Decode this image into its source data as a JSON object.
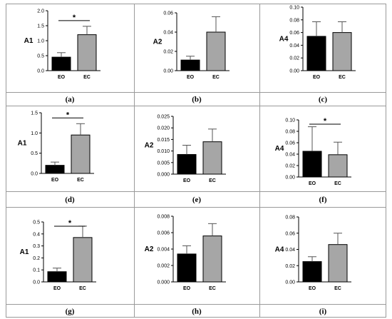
{
  "chart_data": [
    {
      "type": "bar",
      "panel_label": "(a)",
      "ylabel": "A1",
      "categories": [
        "EO",
        "EC"
      ],
      "values": [
        0.45,
        1.2
      ],
      "errors": [
        0.15,
        0.28
      ],
      "ylim": [
        0,
        2.0
      ],
      "yticks": [
        "0.0",
        "0.5",
        "1.0",
        "1.5",
        "2.0"
      ],
      "colors": [
        "#000000",
        "#a6a6a6"
      ],
      "significance": "*"
    },
    {
      "type": "bar",
      "panel_label": "(b)",
      "ylabel": "A2",
      "categories": [
        "EO",
        "EC"
      ],
      "values": [
        0.011,
        0.04
      ],
      "errors": [
        0.004,
        0.016
      ],
      "ylim": [
        0,
        0.06
      ],
      "yticks": [
        "0.00",
        "0.02",
        "0.04",
        "0.06"
      ],
      "colors": [
        "#000000",
        "#a6a6a6"
      ],
      "significance": ""
    },
    {
      "type": "bar",
      "panel_label": "(c)",
      "ylabel": "A4",
      "categories": [
        "EO",
        "EC"
      ],
      "values": [
        0.054,
        0.06
      ],
      "errors": [
        0.023,
        0.017
      ],
      "ylim": [
        0,
        0.1
      ],
      "yticks": [
        "0.00",
        "0.02",
        "0.04",
        "0.06",
        "0.08",
        "0.10"
      ],
      "colors": [
        "#000000",
        "#a6a6a6"
      ],
      "significance": ""
    },
    {
      "type": "bar",
      "panel_label": "(d)",
      "ylabel": "A1",
      "categories": [
        "EO",
        "EC"
      ],
      "values": [
        0.2,
        0.95
      ],
      "errors": [
        0.08,
        0.28
      ],
      "ylim": [
        0,
        1.5
      ],
      "yticks": [
        "0.0",
        "0.5",
        "1.0",
        "1.5"
      ],
      "colors": [
        "#000000",
        "#a6a6a6"
      ],
      "significance": "*"
    },
    {
      "type": "bar",
      "panel_label": "(e)",
      "ylabel": "A2",
      "categories": [
        "EO",
        "EC"
      ],
      "values": [
        0.0085,
        0.014
      ],
      "errors": [
        0.004,
        0.0055
      ],
      "ylim": [
        0,
        0.025
      ],
      "yticks": [
        "0.000",
        "0.005",
        "0.010",
        "0.015",
        "0.020",
        "0.025"
      ],
      "colors": [
        "#000000",
        "#a6a6a6"
      ],
      "significance": ""
    },
    {
      "type": "bar",
      "panel_label": "(f)",
      "ylabel": "A4",
      "categories": [
        "EO",
        "EC"
      ],
      "values": [
        0.045,
        0.039
      ],
      "errors": [
        0.043,
        0.022
      ],
      "ylim": [
        0,
        0.1
      ],
      "yticks": [
        "0.00",
        "0.02",
        "0.04",
        "0.06",
        "0.08",
        "0.10"
      ],
      "colors": [
        "#000000",
        "#a6a6a6"
      ],
      "significance": "*"
    },
    {
      "type": "bar",
      "panel_label": "(g)",
      "ylabel": "A1",
      "categories": [
        "EO",
        "EC"
      ],
      "values": [
        0.085,
        0.37
      ],
      "errors": [
        0.03,
        0.095
      ],
      "ylim": [
        0,
        0.5
      ],
      "yticks": [
        "0.0",
        "0.1",
        "0.2",
        "0.3",
        "0.4",
        "0.5"
      ],
      "colors": [
        "#000000",
        "#a6a6a6"
      ],
      "significance": "*"
    },
    {
      "type": "bar",
      "panel_label": "(h)",
      "ylabel": "A2",
      "categories": [
        "EO",
        "EC"
      ],
      "values": [
        0.0034,
        0.0056
      ],
      "errors": [
        0.001,
        0.0015
      ],
      "ylim": [
        0,
        0.008
      ],
      "yticks": [
        "0.000",
        "0.002",
        "0.004",
        "0.006",
        "0.008"
      ],
      "colors": [
        "#000000",
        "#a6a6a6"
      ],
      "significance": ""
    },
    {
      "type": "bar",
      "panel_label": "(i)",
      "ylabel": "A4",
      "categories": [
        "EO",
        "EC"
      ],
      "values": [
        0.025,
        0.046
      ],
      "errors": [
        0.006,
        0.014
      ],
      "ylim": [
        0,
        0.08
      ],
      "yticks": [
        "0.00",
        "0.02",
        "0.04",
        "0.06",
        "0.08"
      ],
      "colors": [
        "#000000",
        "#a6a6a6"
      ],
      "significance": ""
    }
  ]
}
